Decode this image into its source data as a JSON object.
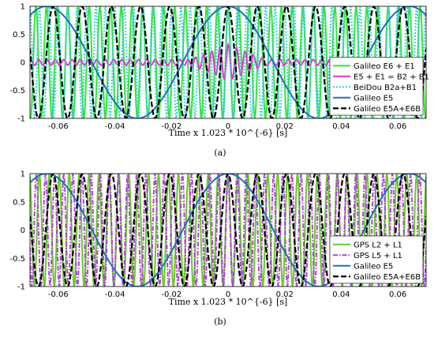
{
  "chart_data": [
    {
      "type": "line",
      "caption": "(a)",
      "xlabel": "Time x 1.023 * 10^{-6} [s]",
      "ylabel": "",
      "xlim": [
        -0.07,
        0.07
      ],
      "ylim": [
        -1,
        1
      ],
      "xticks": [
        "-0.06",
        "-0.04",
        "-0.02",
        "0",
        "0.02",
        "0.04",
        "0.06"
      ],
      "yticks": [
        "1",
        "0.5",
        "0",
        "-0.5",
        "-1"
      ],
      "grid": true,
      "legend_position": "lower-right",
      "series": [
        {
          "name": "Galileo E6 + E1",
          "color": "#33e633",
          "style": "solid",
          "width": 2,
          "freq": 265,
          "amp": 1.0,
          "decay": 0.0,
          "kind": "cos"
        },
        {
          "name": "E5 + E1 = B2 + B1",
          "color": "#e633cc",
          "style": "solid",
          "width": 2,
          "freq": 340,
          "amp": 0.32,
          "decay": 0.0,
          "kind": "mag"
        },
        {
          "name": "BeiDou B2a+B1",
          "color": "#33ccee",
          "style": "dotted",
          "width": 2,
          "freq": 300,
          "amp": 1.0,
          "decay": 0.0,
          "kind": "cos"
        },
        {
          "name": "Galileo E5",
          "color": "#1f6fbf",
          "style": "solid",
          "width": 2,
          "freq": 0,
          "amp": 1.0,
          "decay": 0.0,
          "kind": "envelope"
        },
        {
          "name": "Galileo E5A+E6B",
          "color": "#000000",
          "style": "dashed",
          "width": 2.2,
          "freq": 97,
          "amp": 1.0,
          "decay": 0.0,
          "kind": "cos"
        }
      ]
    },
    {
      "type": "line",
      "caption": "(b)",
      "xlabel": "Time x 1.023 * 10^{-6} [s]",
      "ylabel": "",
      "xlim": [
        -0.07,
        0.07
      ],
      "ylim": [
        -1,
        1
      ],
      "xticks": [
        "-0.06",
        "-0.04",
        "-0.02",
        "0",
        "0.02",
        "0.04",
        "0.06"
      ],
      "yticks": [
        "1",
        "0.5",
        "0",
        "-0.5",
        "-1"
      ],
      "grid": true,
      "legend_position": "lower-right",
      "series": [
        {
          "name": "GPS L2 + L1",
          "color": "#66cc22",
          "style": "solid",
          "width": 2,
          "freq": 285,
          "amp": 1.0,
          "decay": 0.0,
          "kind": "cos"
        },
        {
          "name": "GPS L5 + L1",
          "color": "#b040e0",
          "style": "dashdot",
          "width": 2,
          "freq": 310,
          "amp": 1.0,
          "decay": 0.0,
          "kind": "cos"
        },
        {
          "name": "Galileo E5",
          "color": "#1f6fbf",
          "style": "solid",
          "width": 2,
          "freq": 0,
          "amp": 1.0,
          "decay": 0.0,
          "kind": "envelope"
        },
        {
          "name": "Galileo E5A+E6B",
          "color": "#000000",
          "style": "dashed",
          "width": 2.2,
          "freq": 97,
          "amp": 1.0,
          "decay": 0.0,
          "kind": "cos"
        }
      ]
    }
  ]
}
